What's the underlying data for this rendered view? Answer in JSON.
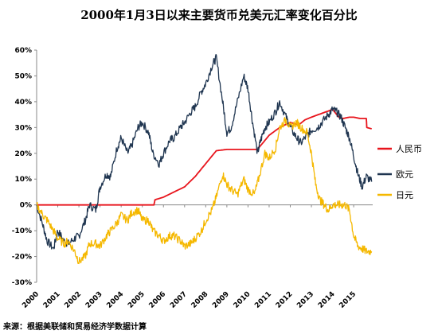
{
  "chart_data": {
    "type": "line",
    "title": "2000年1月3日以来主要货币兑美元汇率变化百分比",
    "xlabel": "",
    "ylabel": "",
    "ylim": [
      -30,
      60
    ],
    "yticks": [
      "-30%",
      "-20%",
      "-10%",
      "0%",
      "10%",
      "20%",
      "30%",
      "40%",
      "50%",
      "60%"
    ],
    "ytick_values": [
      -30,
      -20,
      -10,
      0,
      10,
      20,
      30,
      40,
      50,
      60
    ],
    "xlim": [
      2000,
      2015.9
    ],
    "xticks": [
      "2000",
      "2001",
      "2002",
      "2003",
      "2004",
      "2005",
      "2006",
      "2007",
      "2008",
      "2009",
      "2010",
      "2011",
      "2012",
      "2013",
      "2014",
      "2015"
    ],
    "grid": false,
    "legend_position": "right",
    "source": "来源：根据美联储和贸易经济学数据计算",
    "series": [
      {
        "name": "人民币",
        "color": "#e8141c",
        "x": [
          2000,
          2005.55,
          2005.6,
          2006,
          2006.5,
          2007,
          2007.5,
          2008,
          2008.5,
          2009,
          2010,
          2010.45,
          2010.6,
          2011,
          2011.5,
          2012,
          2012.4,
          2012.7,
          2013,
          2013.5,
          2014,
          2014.1,
          2014.3,
          2014.5,
          2014.8,
          2015,
          2015.3,
          2015.6,
          2015.62,
          2015.85
        ],
        "y": [
          0,
          0,
          2,
          3,
          5,
          7,
          11,
          16,
          21,
          21.5,
          21.5,
          21.5,
          23,
          27,
          30,
          32,
          31,
          33,
          34,
          35.5,
          37,
          36,
          34,
          33.5,
          34,
          34,
          33.5,
          33.5,
          30,
          29.5
        ]
      },
      {
        "name": "欧元",
        "color": "#1f3550",
        "x": [
          2000,
          2000.3,
          2000.5,
          2000.8,
          2001,
          2001.3,
          2001.5,
          2001.8,
          2002,
          2002.3,
          2002.5,
          2002.8,
          2003,
          2003.3,
          2003.5,
          2003.8,
          2004,
          2004.3,
          2004.5,
          2004.8,
          2005,
          2005.3,
          2005.5,
          2005.8,
          2006,
          2006.3,
          2006.5,
          2006.8,
          2007,
          2007.3,
          2007.5,
          2007.8,
          2008,
          2008.3,
          2008.5,
          2008.8,
          2009,
          2009.2,
          2009.5,
          2009.8,
          2010,
          2010.2,
          2010.45,
          2010.6,
          2010.8,
          2011,
          2011.3,
          2011.5,
          2011.8,
          2012,
          2012.3,
          2012.5,
          2012.8,
          2013,
          2013.3,
          2013.5,
          2013.8,
          2014,
          2014.2,
          2014.4,
          2014.6,
          2014.8,
          2015,
          2015.2,
          2015.4,
          2015.6,
          2015.85
        ],
        "y": [
          0,
          -8,
          -14,
          -17,
          -10,
          -14,
          -15,
          -13,
          -12,
          -6,
          0,
          -2,
          7,
          12,
          11,
          22,
          26,
          20,
          23,
          30,
          32,
          28,
          20,
          16,
          20,
          25,
          26,
          30,
          32,
          36,
          38,
          44,
          47,
          54,
          57,
          40,
          28,
          30,
          40,
          50,
          45,
          33,
          20,
          25,
          30,
          32,
          36,
          40,
          34,
          30,
          26,
          24,
          27,
          29,
          30,
          32,
          35,
          37,
          36,
          34,
          30,
          26,
          19,
          12,
          7,
          11,
          9
        ]
      },
      {
        "name": "日元",
        "color": "#f5b800",
        "x": [
          2000,
          2000.3,
          2000.5,
          2000.8,
          2001,
          2001.3,
          2001.5,
          2001.8,
          2002,
          2002.3,
          2002.5,
          2002.8,
          2003,
          2003.3,
          2003.5,
          2003.8,
          2004,
          2004.3,
          2004.5,
          2004.8,
          2005,
          2005.3,
          2005.5,
          2005.8,
          2006,
          2006.3,
          2006.5,
          2006.8,
          2007,
          2007.3,
          2007.5,
          2007.8,
          2008,
          2008.3,
          2008.5,
          2008.8,
          2009,
          2009.2,
          2009.5,
          2009.8,
          2010,
          2010.3,
          2010.5,
          2010.8,
          2011,
          2011.3,
          2011.5,
          2011.8,
          2012,
          2012.3,
          2012.5,
          2012.8,
          2013,
          2013.2,
          2013.4,
          2013.6,
          2013.8,
          2014,
          2014.2,
          2014.4,
          2014.6,
          2014.8,
          2015,
          2015.2,
          2015.4,
          2015.6,
          2015.85
        ],
        "y": [
          0,
          -4,
          -6,
          -10,
          -13,
          -15,
          -14,
          -18,
          -22,
          -20,
          -15,
          -15,
          -16,
          -12,
          -10,
          -7,
          -4,
          -6,
          -3,
          -2,
          -6,
          -6,
          -10,
          -12,
          -14,
          -12,
          -12,
          -14,
          -16,
          -15,
          -13,
          -10,
          -6,
          -2,
          3,
          12,
          8,
          6,
          4,
          10,
          6,
          4,
          10,
          20,
          18,
          22,
          30,
          33,
          30,
          32,
          30,
          28,
          20,
          8,
          2,
          0,
          -2,
          0,
          0,
          0,
          0,
          -2,
          -12,
          -16,
          -17,
          -18,
          -18
        ]
      }
    ]
  }
}
